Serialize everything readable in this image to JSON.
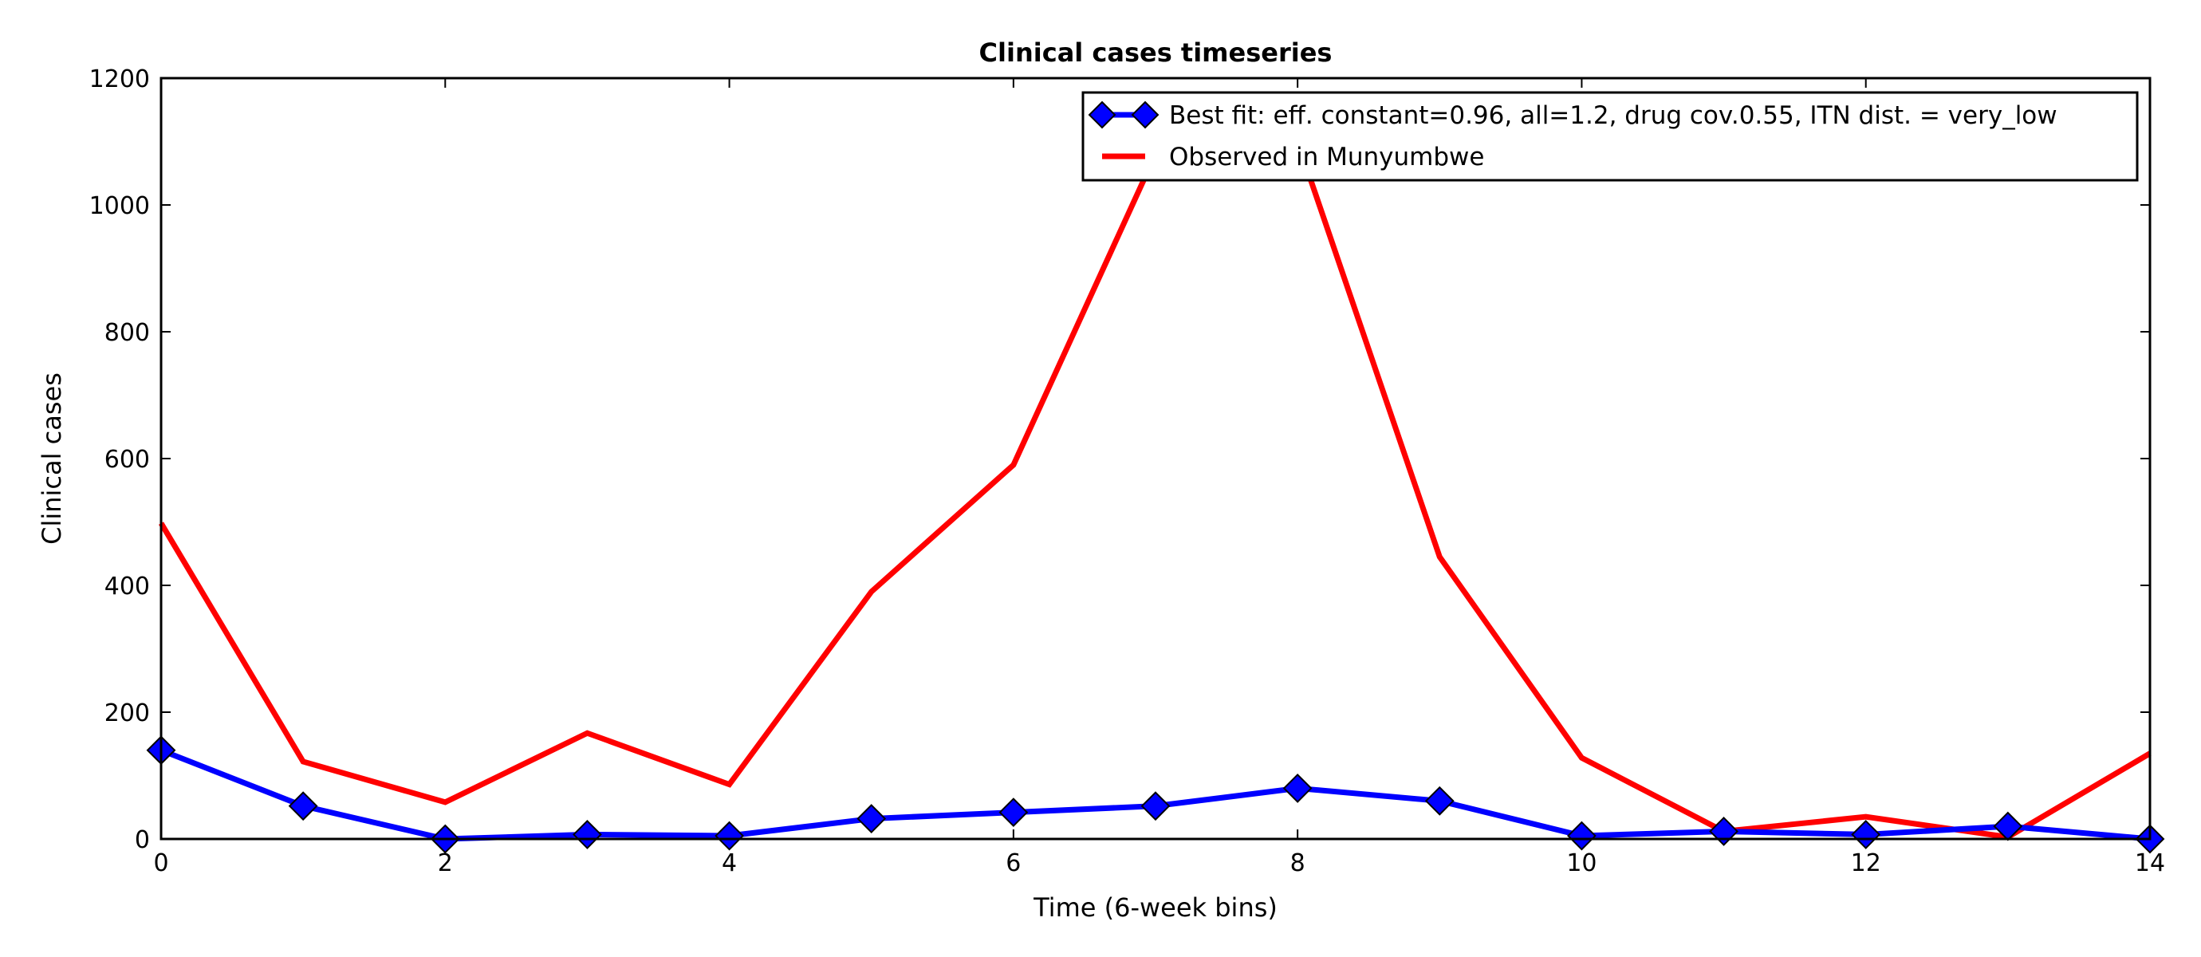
{
  "chart_data": {
    "type": "line",
    "title": "Clinical cases timeseries",
    "xlabel": "Time (6-week bins)",
    "ylabel": "Clinical cases",
    "xlim": [
      0,
      14
    ],
    "ylim": [
      0,
      1200
    ],
    "xticks": [
      0,
      2,
      4,
      6,
      8,
      10,
      12,
      14
    ],
    "yticks": [
      0,
      200,
      400,
      600,
      800,
      1000,
      1200
    ],
    "grid": false,
    "legend_position": "top-right",
    "series": [
      {
        "name": "Best fit: eff. constant=0.96, all=1.2, drug cov.0.55, ITN dist. = very_low",
        "color": "#0000ff",
        "marker": "diamond",
        "x": [
          0,
          1,
          2,
          3,
          4,
          5,
          6,
          7,
          8,
          9,
          10,
          11,
          12,
          13,
          14
        ],
        "values": [
          140,
          52,
          0,
          7,
          5,
          32,
          42,
          52,
          80,
          60,
          5,
          12,
          7,
          20,
          0
        ]
      },
      {
        "name": "Observed in Munyumbwe",
        "color": "#ff0000",
        "marker": "none",
        "x": [
          0,
          1,
          2,
          3,
          4,
          5,
          6,
          7,
          8,
          9,
          10,
          11,
          12,
          13,
          14
        ],
        "values": [
          498,
          122,
          58,
          167,
          86,
          390,
          590,
          1080,
          1100,
          445,
          128,
          12,
          35,
          3,
          135
        ]
      }
    ]
  }
}
